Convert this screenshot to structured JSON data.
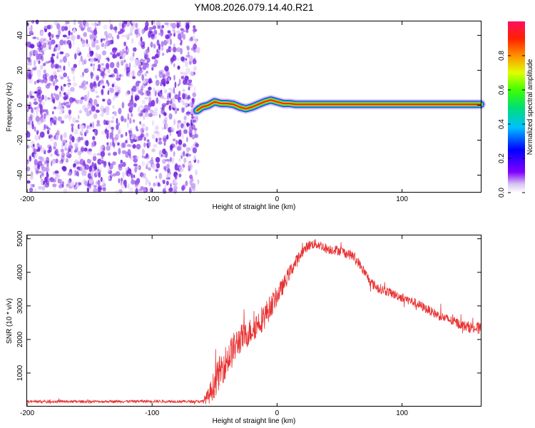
{
  "title": "YM08.2026.079.14.40.R21",
  "colors": {
    "signal": "#e83030",
    "speckle": "#7a2be0",
    "axis": "#000000"
  },
  "chart_data": [
    {
      "type": "heatmap",
      "name": "spectrogram",
      "xlabel": "Height of straight line (km)",
      "ylabel": "Frequency (Hz)",
      "xlim": [
        -200,
        163
      ],
      "ylim": [
        -50,
        48
      ],
      "xticks": [
        "-200",
        "-100",
        "0",
        "100"
      ],
      "xtick_values": [
        -200,
        -100,
        0,
        100
      ],
      "yticks": [
        "-40",
        "-20",
        "0",
        "20",
        "40"
      ],
      "ytick_values": [
        -40,
        -20,
        0,
        20,
        40
      ],
      "noise_region_x": [
        -200,
        -63
      ],
      "trace": {
        "x": [
          -64,
          -60,
          -55,
          -50,
          -45,
          -40,
          -35,
          -30,
          -25,
          -20,
          -15,
          -10,
          -5,
          0,
          5,
          10,
          15,
          163
        ],
        "y": [
          -3,
          -1,
          0,
          2,
          1,
          1,
          0.5,
          -1,
          -2,
          -1,
          0.5,
          2,
          3,
          2,
          1,
          1,
          0.5,
          0.5
        ]
      },
      "colorbar": {
        "label": "Normalized spectral amplitude",
        "ticks": [
          "0.0",
          "0.2",
          "0.4",
          "0.6",
          "0.8"
        ],
        "tick_values": [
          0,
          0.2,
          0.4,
          0.6,
          0.8
        ],
        "range": [
          0,
          1
        ]
      }
    },
    {
      "type": "line",
      "name": "snr",
      "xlabel": "Height of straight line (km)",
      "ylabel": "SNR (10 * v/v)",
      "xlim": [
        -200,
        163
      ],
      "ylim": [
        0,
        5100
      ],
      "xticks": [
        "-200",
        "-100",
        "0",
        "100"
      ],
      "xtick_values": [
        -200,
        -100,
        0,
        100
      ],
      "yticks": [
        "1000",
        "2000",
        "3000",
        "4000",
        "5000"
      ],
      "ytick_values": [
        1000,
        2000,
        3000,
        4000,
        5000
      ],
      "series": [
        {
          "name": "SNR",
          "x": [
            -200,
            -150,
            -100,
            -60,
            -55,
            -50,
            -45,
            -40,
            -35,
            -30,
            -25,
            -20,
            -15,
            -10,
            -5,
            0,
            5,
            10,
            15,
            20,
            25,
            30,
            35,
            40,
            50,
            60,
            65,
            70,
            75,
            80,
            90,
            100,
            110,
            120,
            130,
            140,
            150,
            163
          ],
          "y": [
            150,
            150,
            160,
            150,
            300,
            700,
            1100,
            1400,
            1700,
            2000,
            2100,
            2300,
            2500,
            2700,
            3000,
            3300,
            3600,
            4000,
            4300,
            4600,
            4800,
            4850,
            4800,
            4700,
            4650,
            4500,
            4300,
            4000,
            3700,
            3550,
            3400,
            3250,
            3100,
            2900,
            2700,
            2550,
            2400,
            2300
          ],
          "noise": [
            40,
            40,
            40,
            40,
            250,
            450,
            500,
            500,
            500,
            450,
            400,
            400,
            400,
            400,
            350,
            300,
            250,
            220,
            200,
            150,
            150,
            150,
            150,
            150,
            150,
            150,
            150,
            150,
            150,
            150,
            140,
            140,
            140,
            140,
            140,
            150,
            160,
            200
          ]
        }
      ]
    }
  ]
}
